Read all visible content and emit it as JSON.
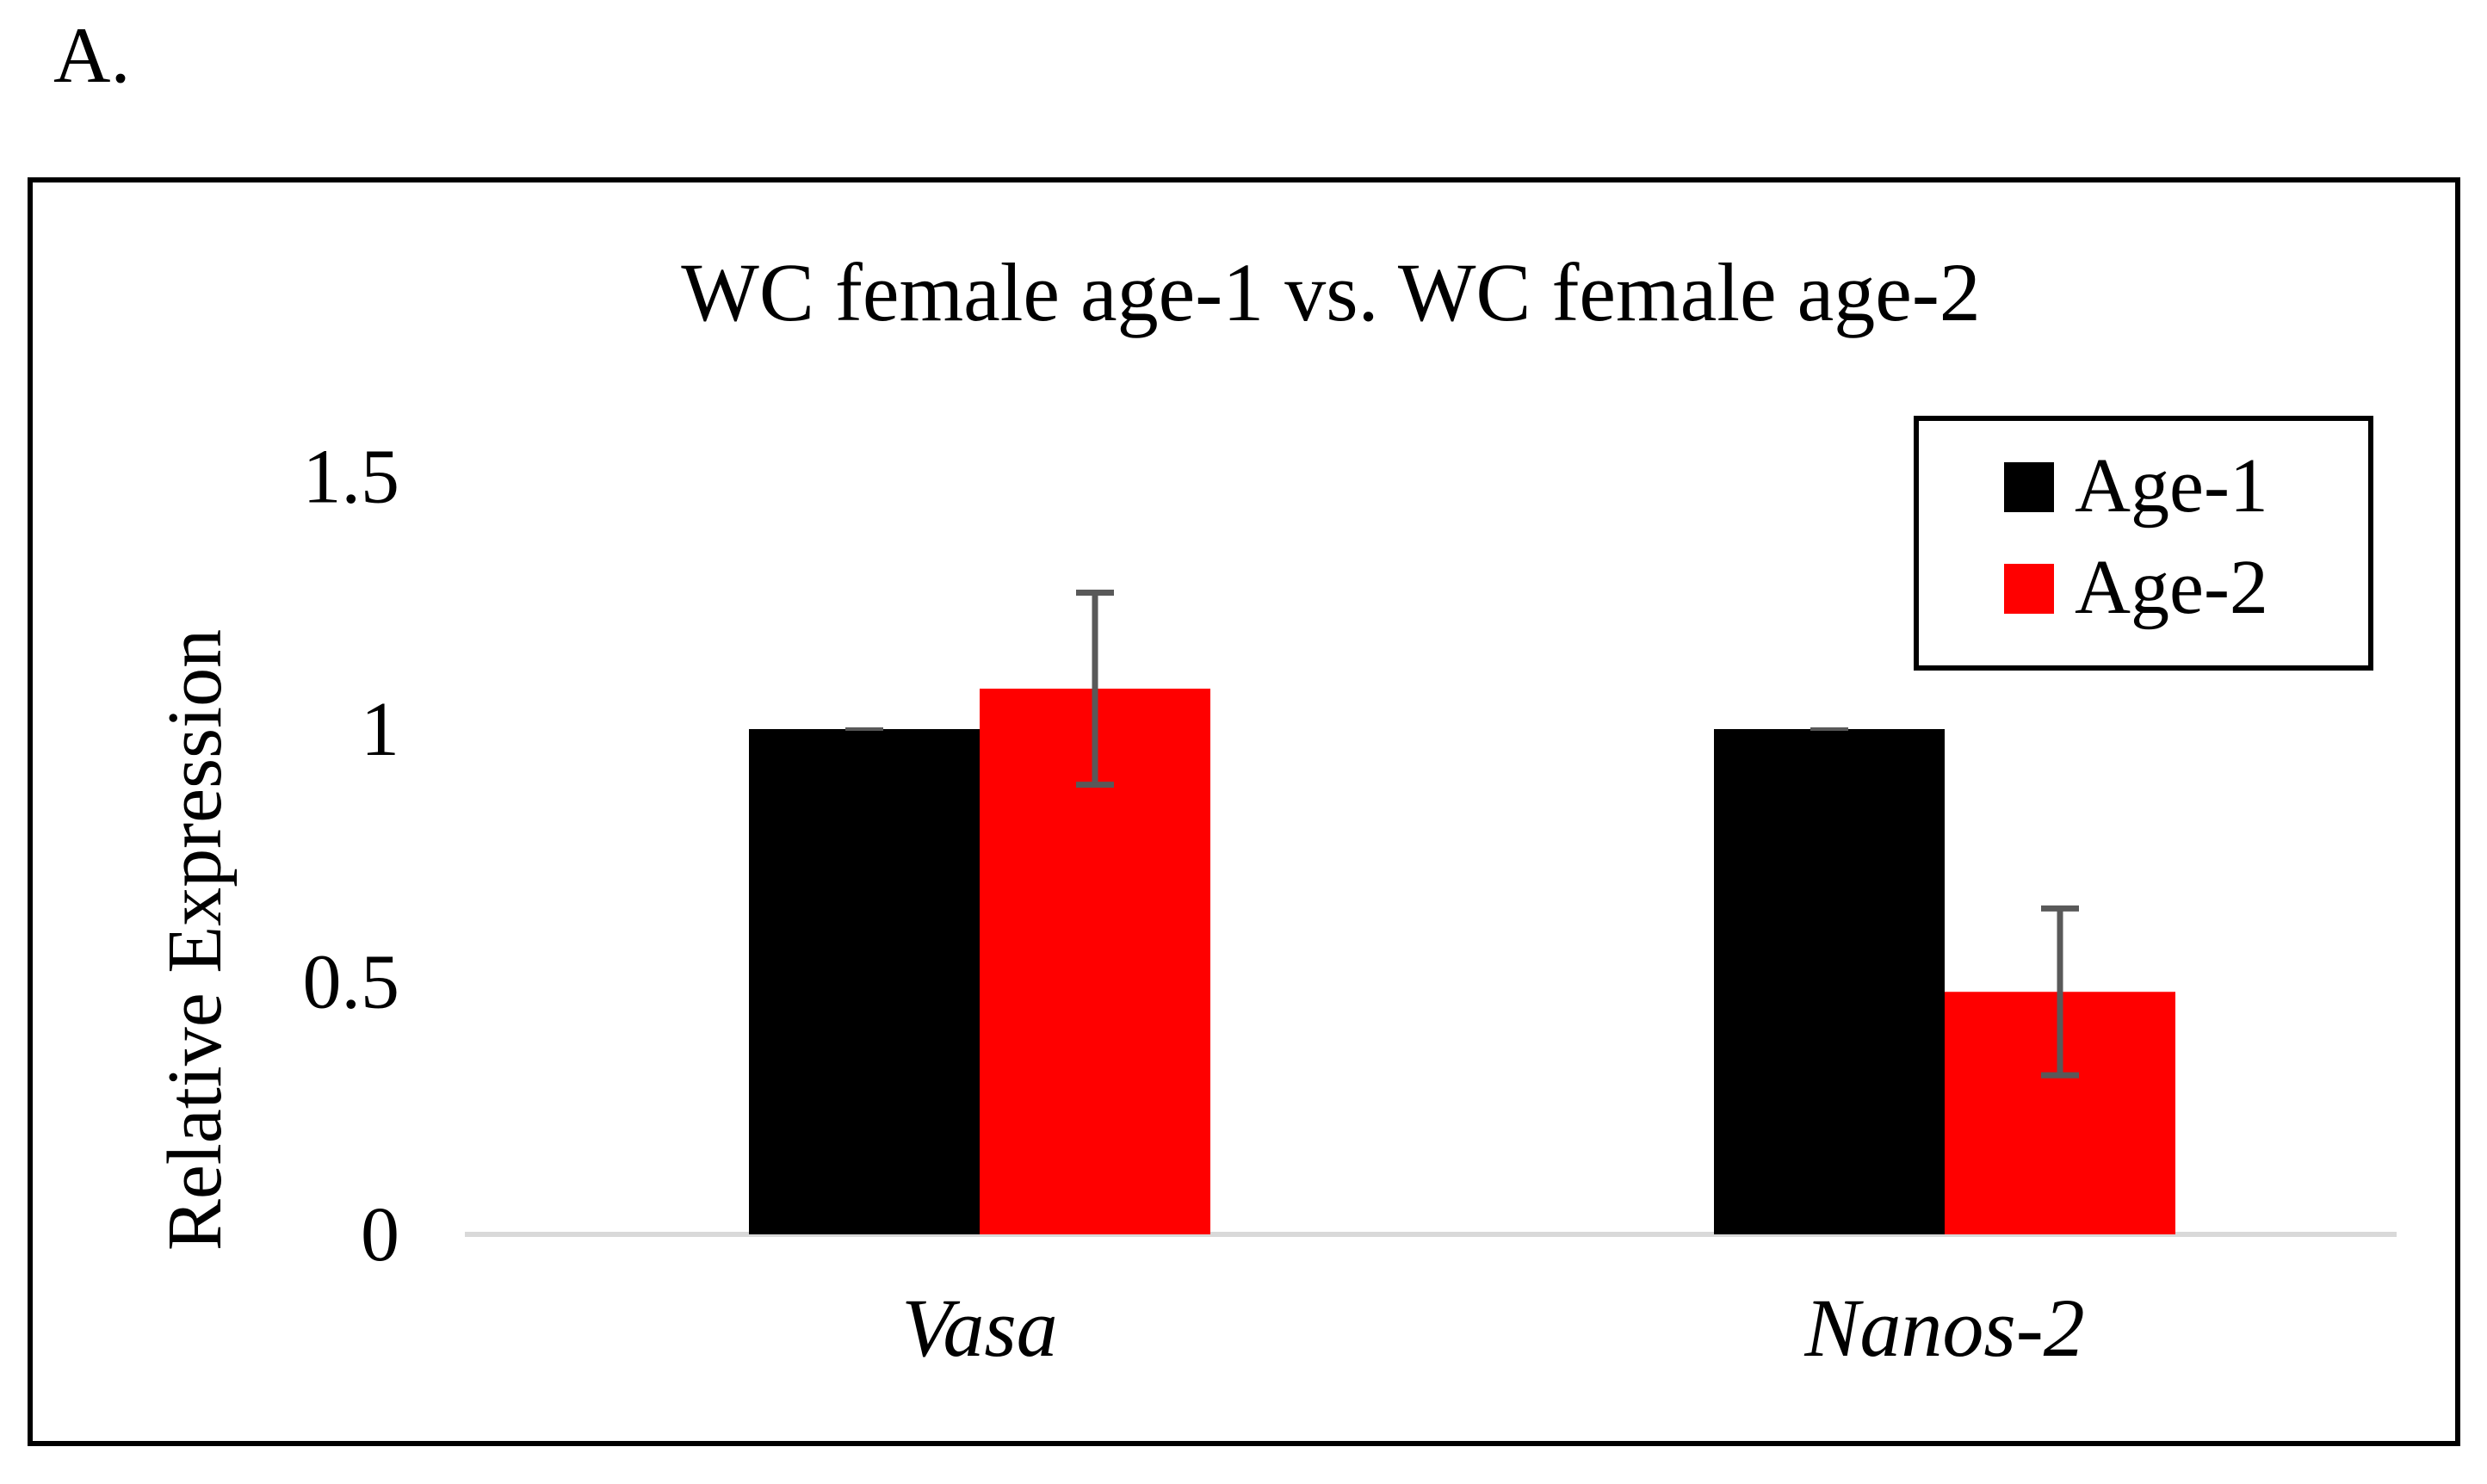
{
  "panel_label": "A.",
  "chart_data": {
    "type": "bar",
    "title": "WC female age-1 vs. WC female age-2",
    "xlabel": "",
    "ylabel": "Relative Expression",
    "categories": [
      "Vasa",
      "Nanos-2"
    ],
    "category_style": "italic",
    "ylim": [
      0,
      1.5
    ],
    "yticks": [
      0,
      0.5,
      1,
      1.5
    ],
    "ytick_labels": [
      "0",
      "0.5",
      "1",
      "1.5"
    ],
    "grid": false,
    "legend_position": "top-right",
    "series": [
      {
        "name": "Age-1",
        "color": "#000000",
        "values": [
          1.0,
          1.0
        ],
        "errors": [
          0.0,
          0.0
        ]
      },
      {
        "name": "Age-2",
        "color": "#ff0000",
        "values": [
          1.08,
          0.48
        ],
        "errors": [
          0.19,
          0.165
        ]
      }
    ],
    "error_bar_color": "#595959",
    "axis_color": "#d9d9d9"
  }
}
